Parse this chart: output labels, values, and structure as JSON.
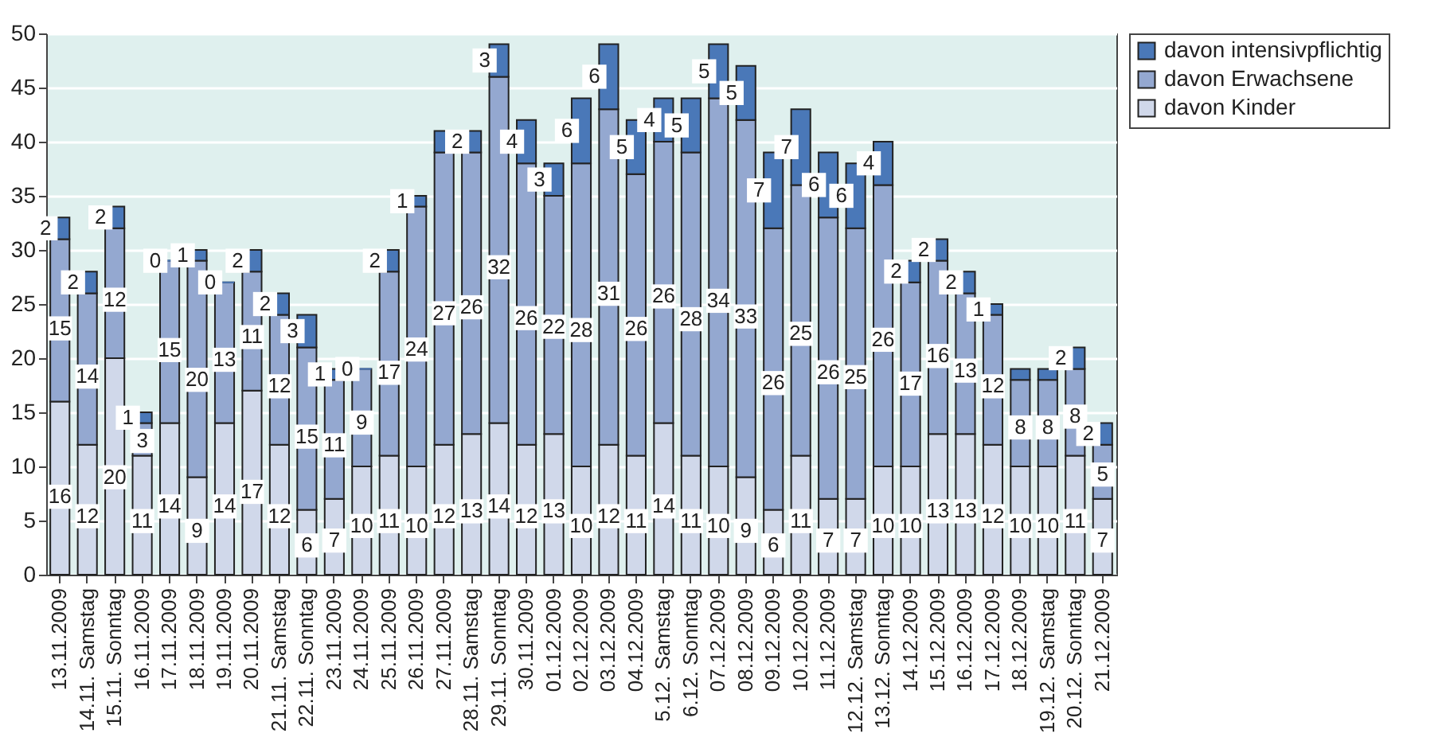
{
  "chart_data": {
    "type": "bar",
    "stacked": true,
    "categories": [
      "13.11.2009",
      "14.11. Samstag",
      "15.11. Sonntag",
      "16.11.2009",
      "17.11.2009",
      "18.11.2009",
      "19.11.2009",
      "20.11.2009",
      "21.11. Samstag",
      "22.11. Sonntag",
      "23.11.2009",
      "24.11.2009",
      "25.11.2009",
      "26.11.2009",
      "27.11.2009",
      "28.11. Samstag",
      "29.11. Sonntag",
      "30.11.2009",
      "01.12.2009",
      "02.12.2009",
      "03.12.2009",
      "04.12.2009",
      "5.12. Samstag",
      "6.12. Sonntag",
      "07.12.2009",
      "08.12.2009",
      "09.12.2009",
      "10.12.2009",
      "11.12.2009",
      "12.12. Samstag",
      "13.12. Sonntag",
      "14.12.2009",
      "15.12.2009",
      "16.12.2009",
      "17.12.2009",
      "18.12.2009",
      "19.12. Samstag",
      "20.12. Sonntag",
      "21.12.2009"
    ],
    "series": [
      {
        "name": "davon Kinder",
        "color": "#d0d8ea",
        "values": [
          16,
          12,
          20,
          11,
          14,
          9,
          14,
          17,
          12,
          6,
          7,
          10,
          11,
          10,
          12,
          13,
          14,
          12,
          13,
          10,
          12,
          11,
          14,
          11,
          10,
          9,
          6,
          11,
          7,
          7,
          10,
          10,
          13,
          13,
          12,
          10,
          10,
          11,
          7
        ],
        "value_labels": [
          "16",
          "12",
          "20",
          "11",
          "14",
          "9",
          "14",
          "17",
          "12",
          "6",
          "7",
          "10",
          "11",
          "10",
          "12",
          "13",
          "14",
          "12",
          "13",
          "10",
          "12",
          "11",
          "14",
          "11",
          "10",
          "9",
          "6",
          "11",
          "7",
          "7",
          "10",
          "10",
          "13",
          "13",
          "12",
          "10",
          "10",
          "11",
          "7"
        ]
      },
      {
        "name": "davon Erwachsene",
        "color": "#94a8d0",
        "values": [
          15,
          14,
          12,
          3,
          15,
          20,
          13,
          11,
          12,
          15,
          11,
          9,
          17,
          24,
          27,
          26,
          32,
          26,
          22,
          28,
          31,
          26,
          26,
          28,
          34,
          33,
          26,
          25,
          26,
          25,
          26,
          17,
          16,
          13,
          12,
          8,
          8,
          8,
          5
        ],
        "value_labels": [
          "15",
          "14",
          "12",
          "3",
          "15",
          "20",
          "13",
          "11",
          "12",
          "15",
          "11",
          "9",
          "17",
          "24",
          "27",
          "26",
          "32",
          "26",
          "22",
          "28",
          "31",
          "26",
          "26",
          "28",
          "34",
          "33",
          "26",
          "25",
          "26",
          "25",
          "26",
          "17",
          "16",
          "13",
          "12",
          "8",
          "8",
          "8",
          "5"
        ]
      },
      {
        "name": "davon intensivpflichtig",
        "color": "#4a78b8",
        "values": [
          2,
          2,
          2,
          1,
          0,
          1,
          0,
          2,
          2,
          3,
          1,
          0,
          2,
          1,
          2,
          2,
          3,
          4,
          3,
          6,
          6,
          5,
          4,
          5,
          5,
          5,
          7,
          7,
          6,
          6,
          4,
          2,
          2,
          2,
          1,
          1,
          1,
          2,
          2
        ],
        "value_labels": [
          "2",
          "2",
          "2",
          "1",
          "0",
          "1",
          "0",
          "2",
          "2",
          "3",
          "1",
          "0",
          "2",
          "1",
          null,
          "2",
          "3",
          "4",
          "3",
          "6",
          "6",
          "5",
          "4",
          "5",
          "5",
          "5",
          "7",
          "7",
          "6",
          "6",
          "4",
          "2",
          "2",
          "2",
          "1",
          null,
          null,
          "2",
          "2"
        ]
      }
    ],
    "ylim": [
      0,
      50
    ],
    "yticks": [
      0,
      5,
      10,
      15,
      20,
      25,
      30,
      35,
      40,
      45,
      50
    ],
    "grid": "y",
    "legend": "top right"
  }
}
